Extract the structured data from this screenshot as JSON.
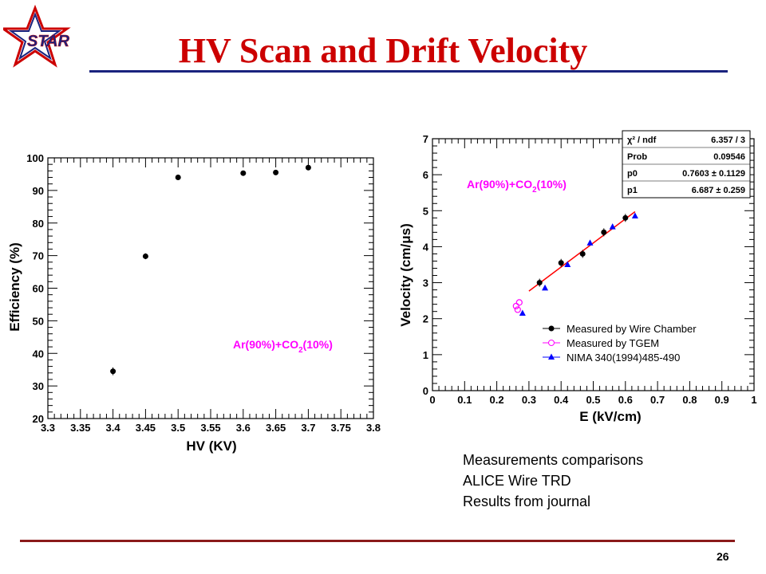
{
  "slide": {
    "title": "HV Scan and Drift Velocity",
    "logo_text": "STAR",
    "notes": [
      "Measurements comparisons",
      "ALICE Wire TRD",
      "Results from journal"
    ],
    "page_number": "26",
    "colors": {
      "title": "#cc0000",
      "title_rule": "#1a237e",
      "footer_rule": "#8b1a1a",
      "logo_outline": "#cc0000",
      "logo_fill": "#1a237e"
    }
  },
  "chart_data": [
    {
      "type": "scatter",
      "xlabel": "HV (KV)",
      "ylabel": "Efficiency (%)",
      "xlim": [
        3.3,
        3.8
      ],
      "ylim": [
        20,
        100
      ],
      "xticks": [
        "3.3",
        "3.35",
        "3.4",
        "3.45",
        "3.5",
        "3.55",
        "3.6",
        "3.65",
        "3.7",
        "3.75",
        "3.8"
      ],
      "yticks": [
        "20",
        "30",
        "40",
        "50",
        "60",
        "70",
        "80",
        "90",
        "100"
      ],
      "annotation": {
        "main": "Ar(90%)+CO",
        "sub": "2",
        "tail": "(10%)",
        "color": "#ff00ff"
      },
      "series": [
        {
          "x": [
            3.4,
            3.45,
            3.5,
            3.6,
            3.65,
            3.7
          ],
          "y": [
            34.5,
            69.8,
            94,
            95.3,
            95.5,
            97
          ],
          "yerr": [
            1.2,
            0.9,
            0.5,
            0.5,
            0.5,
            0.5
          ],
          "color": "#000000"
        }
      ],
      "grid": false
    },
    {
      "type": "scatter",
      "xlabel": "E (kV/cm)",
      "ylabel": "Velocity (cm/μs)",
      "xlim": [
        0,
        1
      ],
      "ylim": [
        0,
        7
      ],
      "xticks": [
        "0",
        "0.1",
        "0.2",
        "0.3",
        "0.4",
        "0.5",
        "0.6",
        "0.7",
        "0.8",
        "0.9",
        "1"
      ],
      "yticks": [
        "0",
        "1",
        "2",
        "3",
        "4",
        "5",
        "6",
        "7"
      ],
      "annotation": {
        "main": "Ar(90%)+CO",
        "sub": "2",
        "tail": "(10%)",
        "color": "#ff00ff"
      },
      "stats_box": [
        {
          "label": "χ² / ndf",
          "value": "6.357 / 3"
        },
        {
          "label": "Prob",
          "value": "0.09546"
        },
        {
          "label": "p0",
          "value": "0.7603 ± 0.1129"
        },
        {
          "label": "p1",
          "value": "6.687 ± 0.259"
        }
      ],
      "fit_line": {
        "p0": 0.7603,
        "p1": 6.687,
        "x_range": [
          0.3,
          0.63
        ],
        "color": "#ff0000"
      },
      "series": [
        {
          "name": "Measured by Wire Chamber",
          "marker": "circle",
          "color": "#000000",
          "x": [
            0.333,
            0.4,
            0.467,
            0.533,
            0.6
          ],
          "y": [
            3.0,
            3.55,
            3.8,
            4.4,
            4.8
          ]
        },
        {
          "name": "Measured by TGEM",
          "marker": "open-circle",
          "color": "#ff00ff",
          "x": [
            0.26,
            0.265,
            0.27
          ],
          "y": [
            2.35,
            2.25,
            2.45
          ]
        },
        {
          "name": "NIMA 340(1994)485-490",
          "marker": "triangle",
          "color": "#0000ff",
          "x": [
            0.28,
            0.35,
            0.42,
            0.49,
            0.56,
            0.63
          ],
          "y": [
            2.15,
            2.85,
            3.5,
            4.1,
            4.55,
            4.85
          ]
        }
      ],
      "legend": "bottom-right",
      "grid": false
    }
  ]
}
